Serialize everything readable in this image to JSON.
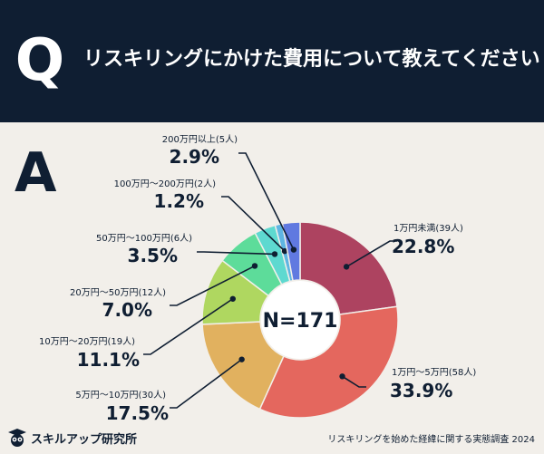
{
  "header": {
    "q_letter": "Q",
    "question": "リスキリングにかけた費用について教えてください"
  },
  "answer_letter": "A",
  "chart_data": {
    "type": "pie",
    "center_label": "N=171",
    "slices": [
      {
        "label": "1万円未満(39人)",
        "value": 22.8,
        "value_label": "22.8%",
        "color": "#ad4360"
      },
      {
        "label": "1万円〜5万円(58人)",
        "value": 33.9,
        "value_label": "33.9%",
        "color": "#e4675e"
      },
      {
        "label": "5万円〜10万円(30人)",
        "value": 17.5,
        "value_label": "17.5%",
        "color": "#e1b15f"
      },
      {
        "label": "10万円〜20万円(19人)",
        "value": 11.1,
        "value_label": "11.1%",
        "color": "#afd760"
      },
      {
        "label": "20万円〜50万円(12人)",
        "value": 7.0,
        "value_label": "7.0%",
        "color": "#5ddc9a"
      },
      {
        "label": "50万円〜100万円(6人)",
        "value": 3.5,
        "value_label": "3.5%",
        "color": "#5ed9d0"
      },
      {
        "label": "100万円〜200万円(2人)",
        "value": 1.2,
        "value_label": "1.2%",
        "color": "#5fb5e2"
      },
      {
        "label": "200万円以上(5人)",
        "value": 2.9,
        "value_label": "2.9%",
        "color": "#6079e0"
      }
    ]
  },
  "footer": {
    "logo_icon": "owl-graduate-icon",
    "brand": "スキルアップ研究所",
    "source": "リスキリングを始めた経緯に関する実態調査 2024"
  }
}
